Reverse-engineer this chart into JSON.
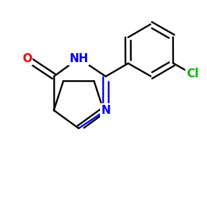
{
  "background": "#ffffff",
  "bond_color": "#000000",
  "N_color": "#0000ee",
  "O_color": "#ee0000",
  "Cl_color": "#00bb00",
  "bond_lw": 1.8,
  "dbo": 0.012,
  "figsize": [
    3.0,
    3.0
  ],
  "dpi": 100,
  "xlim": [
    0.05,
    0.95
  ],
  "ylim": [
    0.1,
    0.9
  ],
  "label_fontsize": 12
}
